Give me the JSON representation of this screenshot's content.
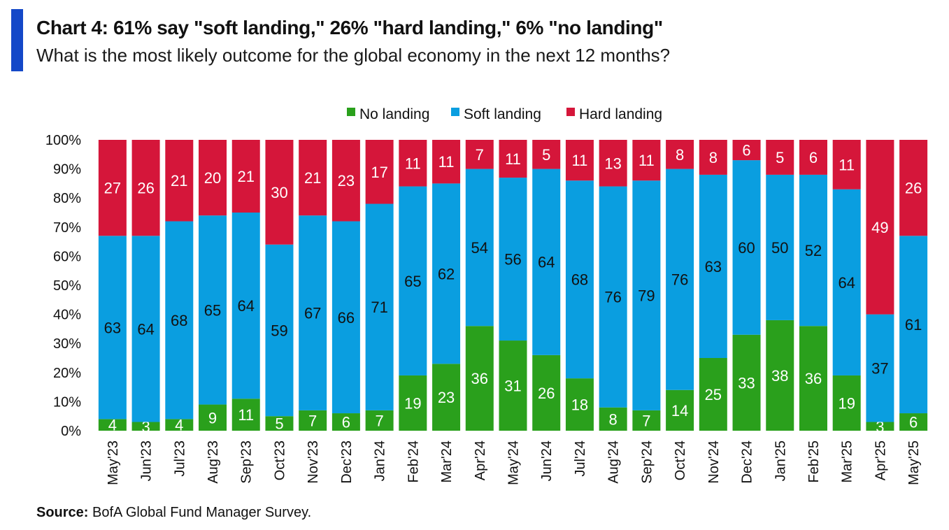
{
  "header": {
    "title": "Chart 4: 61% say \"soft landing,\" 26% \"hard landing,\" 6% \"no landing\"",
    "subtitle": "What is the most likely outcome for the global economy in the next 12 months?"
  },
  "footer": {
    "source_label": "Source:",
    "source_text": " BofA Global Fund Manager Survey."
  },
  "colors": {
    "accent": "#1448c8",
    "no_landing": "#2aa01c",
    "soft_landing": "#0a9ee0",
    "hard_landing": "#d5163a"
  },
  "chart_data": {
    "type": "bar",
    "stacked": true,
    "categories": [
      "May'23",
      "Jun'23",
      "Jul'23",
      "Aug'23",
      "Sep'23",
      "Oct'23",
      "Nov'23",
      "Dec'23",
      "Jan'24",
      "Feb'24",
      "Mar'24",
      "Apr'24",
      "May'24",
      "Jun'24",
      "Jul'24",
      "Aug'24",
      "Sep'24",
      "Oct'24",
      "Nov'24",
      "Dec'24",
      "Jan'25",
      "Feb'25",
      "Mar'25",
      "Apr'25",
      "May'25"
    ],
    "series": [
      {
        "name": "No landing",
        "color": "#2aa01c",
        "values": [
          4,
          3,
          4,
          9,
          11,
          5,
          7,
          6,
          7,
          19,
          23,
          36,
          31,
          26,
          18,
          8,
          7,
          14,
          25,
          33,
          38,
          36,
          19,
          3,
          6
        ]
      },
      {
        "name": "Soft landing",
        "color": "#0a9ee0",
        "values": [
          63,
          64,
          68,
          65,
          64,
          59,
          67,
          66,
          71,
          65,
          62,
          54,
          56,
          64,
          68,
          76,
          79,
          76,
          63,
          60,
          50,
          52,
          64,
          37,
          61
        ]
      },
      {
        "name": "Hard landing",
        "color": "#d5163a",
        "values": [
          27,
          26,
          21,
          20,
          21,
          30,
          21,
          23,
          17,
          11,
          11,
          7,
          11,
          5,
          11,
          13,
          11,
          8,
          8,
          6,
          5,
          6,
          11,
          49,
          26
        ]
      }
    ],
    "ylim": [
      0,
      100
    ],
    "yticks": [
      "0%",
      "10%",
      "20%",
      "30%",
      "40%",
      "50%",
      "60%",
      "70%",
      "80%",
      "90%",
      "100%"
    ],
    "legend_position": "top-center"
  }
}
